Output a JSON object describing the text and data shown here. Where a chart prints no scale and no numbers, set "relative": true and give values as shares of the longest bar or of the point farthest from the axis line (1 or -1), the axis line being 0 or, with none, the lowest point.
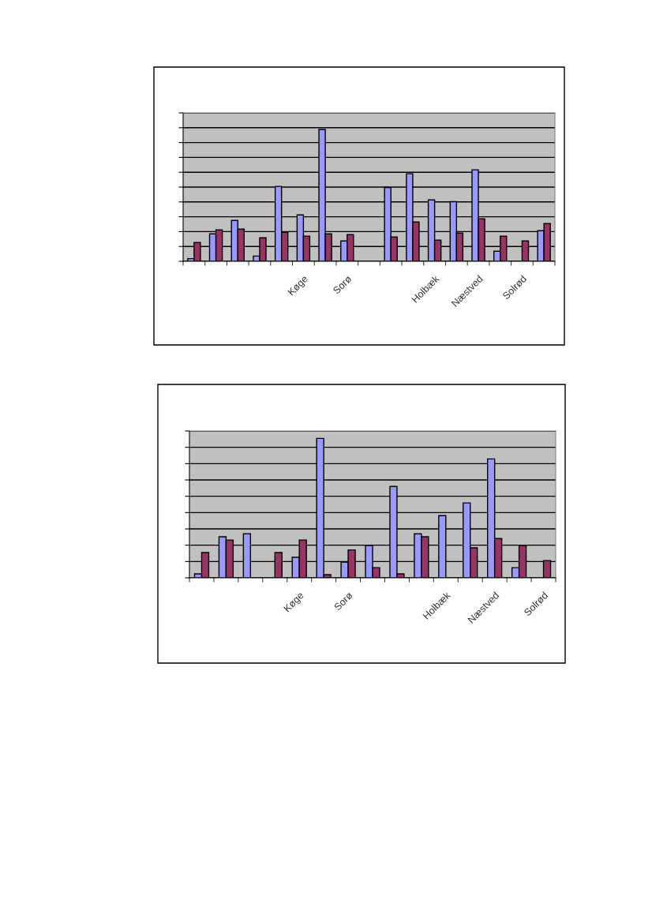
{
  "chart_data": [
    {
      "type": "bar",
      "relative": true,
      "grid": "y",
      "categories": [
        null,
        null,
        null,
        null,
        null,
        "Køge",
        null,
        "Sorø",
        null,
        null,
        null,
        "Holbæk",
        null,
        "Næstved",
        null,
        "Solrød",
        null
      ],
      "series": [
        {
          "color": "#9999ff",
          "values": [
            0.02,
            0.208,
            0.31,
            0.04,
            0.568,
            0.352,
            1,
            0.154,
            null,
            0.56,
            0.664,
            0.466,
            0.452,
            0.694,
            0.076,
            null,
            0.232
          ]
        },
        {
          "color": "#993366",
          "values": [
            0.142,
            0.238,
            0.244,
            0.178,
            0.22,
            0.19,
            0.208,
            0.202,
            null,
            0.184,
            0.298,
            0.16,
            0.214,
            0.322,
            0.19,
            0.154,
            0.286
          ]
        }
      ]
    },
    {
      "type": "bar",
      "relative": true,
      "grid": "y",
      "categories": [
        null,
        null,
        null,
        null,
        "Køge",
        null,
        "Sorø",
        null,
        null,
        null,
        "Holbæk",
        null,
        "Næstved",
        null,
        "Solrød"
      ],
      "series": [
        {
          "color": "#9999ff",
          "values": [
            0.028,
            0.294,
            0.316,
            null,
            0.147,
            1,
            0.113,
            0.232,
            0.655,
            0.316,
            0.446,
            0.537,
            0.853,
            0.073,
            null
          ]
        },
        {
          "color": "#993366",
          "values": [
            0.181,
            0.271,
            null,
            0.181,
            0.271,
            0.023,
            0.2,
            0.073,
            0.028,
            0.294,
            null,
            0.215,
            0.282,
            0.232,
            0.124
          ]
        }
      ]
    }
  ]
}
